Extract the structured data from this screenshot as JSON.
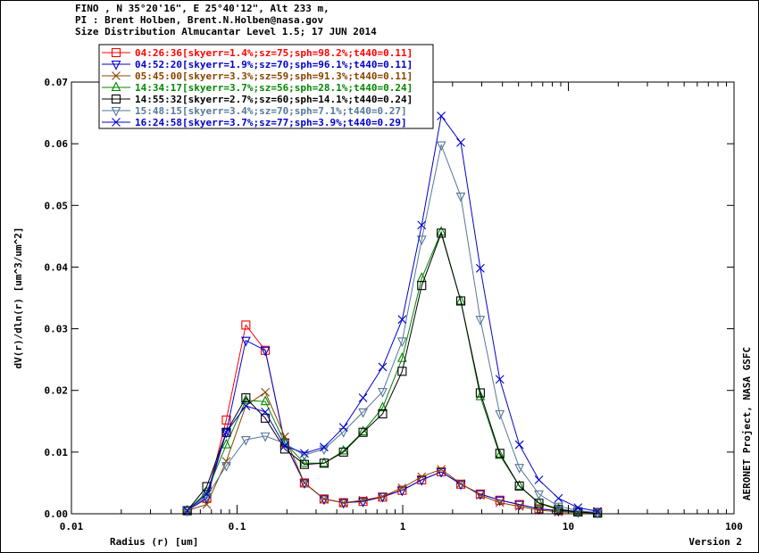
{
  "header": {
    "line1": "FINO , N 35°20'16\", E 25°40'12\", Alt 233 m,",
    "line2": "PI : Brent Holben, Brent.N.Holben@nasa.gov",
    "line3": "Size Distribution Almucantar Level 1.5; 17 JUN 2014"
  },
  "side_label": "AERONET Project, NASA GSFC",
  "version_label": "Version 2",
  "chart_data": {
    "type": "line",
    "xscale": "log",
    "xlim": [
      0.01,
      100
    ],
    "ylim": [
      0,
      0.07
    ],
    "xlabel": "Radius (r) [um]",
    "ylabel": "dV(r)/dln(r) [um^3/um^2]",
    "x_ticks": [
      "0.01",
      "0.1",
      "1",
      "10",
      "100"
    ],
    "y_ticks": [
      "0.00",
      "0.01",
      "0.02",
      "0.03",
      "0.04",
      "0.05",
      "0.06",
      "0.07"
    ],
    "x": [
      0.05,
      0.0656,
      0.0861,
      0.113,
      0.148,
      0.194,
      0.255,
      0.335,
      0.439,
      0.576,
      0.756,
      0.992,
      1.302,
      1.708,
      2.241,
      2.94,
      3.857,
      5.061,
      6.641,
      8.713,
      11.432,
      15.0
    ],
    "series": [
      {
        "name": "04:26:36[skyerr=1.4%;sz=75;sph=98.2%;t440=0.11]",
        "color": "#ff0000",
        "marker": "square",
        "values": [
          0.0005,
          0.0025,
          0.0152,
          0.0306,
          0.0265,
          0.0115,
          0.005,
          0.0024,
          0.0018,
          0.002,
          0.0027,
          0.0038,
          0.0055,
          0.0068,
          0.0048,
          0.0032,
          0.0022,
          0.0015,
          0.0008,
          0.0005,
          0.0003,
          0.0002
        ]
      },
      {
        "name": "04:52:20[skyerr=1.9%;sz=70;sph=96.1%;t440=0.11]",
        "color": "#0000cc",
        "marker": "triangle-down",
        "values": [
          0.0005,
          0.0025,
          0.0132,
          0.0281,
          0.0265,
          0.0115,
          0.005,
          0.0024,
          0.0018,
          0.002,
          0.0028,
          0.0038,
          0.0055,
          0.0068,
          0.0048,
          0.0032,
          0.0022,
          0.0015,
          0.0008,
          0.0005,
          0.0003,
          0.0002
        ]
      },
      {
        "name": "05:45:00[skyerr=3.3%;sz=59;sph=91.3%;t440=0.11]",
        "color": "#884400",
        "marker": "x",
        "values": [
          0.0005,
          0.0015,
          0.0085,
          0.0175,
          0.0197,
          0.0125,
          0.005,
          0.0024,
          0.0018,
          0.0022,
          0.0028,
          0.0042,
          0.006,
          0.0072,
          0.0049,
          0.003,
          0.0018,
          0.0012,
          0.0006,
          0.0003,
          0.0002,
          0.0001
        ]
      },
      {
        "name": "14:34:17[skyerr=3.7%;sz=56;sph=28.1%;t440=0.24]",
        "color": "#008800",
        "marker": "triangle",
        "values": [
          0.0005,
          0.0035,
          0.0112,
          0.0184,
          0.0182,
          0.0115,
          0.0082,
          0.0082,
          0.0102,
          0.0133,
          0.0172,
          0.0252,
          0.0382,
          0.0457,
          0.0345,
          0.019,
          0.0095,
          0.0045,
          0.0018,
          0.0008,
          0.0003,
          0.0001
        ]
      },
      {
        "name": "14:55:32[skyerr=2.7%;sz=60;sph=14.1%;t440=0.24]",
        "color": "#000000",
        "marker": "square",
        "values": [
          0.0005,
          0.0044,
          0.0132,
          0.0188,
          0.0155,
          0.0105,
          0.008,
          0.0082,
          0.01,
          0.0132,
          0.0162,
          0.0231,
          0.037,
          0.0455,
          0.0345,
          0.0196,
          0.0098,
          0.0045,
          0.0017,
          0.0007,
          0.0003,
          0.0001
        ]
      },
      {
        "name": "15:48:15[skyerr=3.4%;sz=70;sph=7.1%;t440=0.27]",
        "color": "#557799",
        "marker": "triangle-down",
        "values": [
          0.0005,
          0.0028,
          0.0078,
          0.012,
          0.0126,
          0.0114,
          0.0095,
          0.0105,
          0.0133,
          0.0165,
          0.0198,
          0.028,
          0.0445,
          0.0598,
          0.0515,
          0.0315,
          0.0162,
          0.0075,
          0.0032,
          0.0012,
          0.0005,
          0.0002
        ]
      },
      {
        "name": "16:24:58[skyerr=3.7%;sz=77;sph=3.9%;t440=0.29]",
        "color": "#0000cc",
        "marker": "x",
        "values": [
          0.0005,
          0.0032,
          0.0132,
          0.0175,
          0.0165,
          0.011,
          0.0098,
          0.0108,
          0.014,
          0.0188,
          0.0238,
          0.0315,
          0.0468,
          0.0645,
          0.0602,
          0.0398,
          0.0218,
          0.0112,
          0.0055,
          0.0025,
          0.001,
          0.0004
        ]
      }
    ]
  }
}
